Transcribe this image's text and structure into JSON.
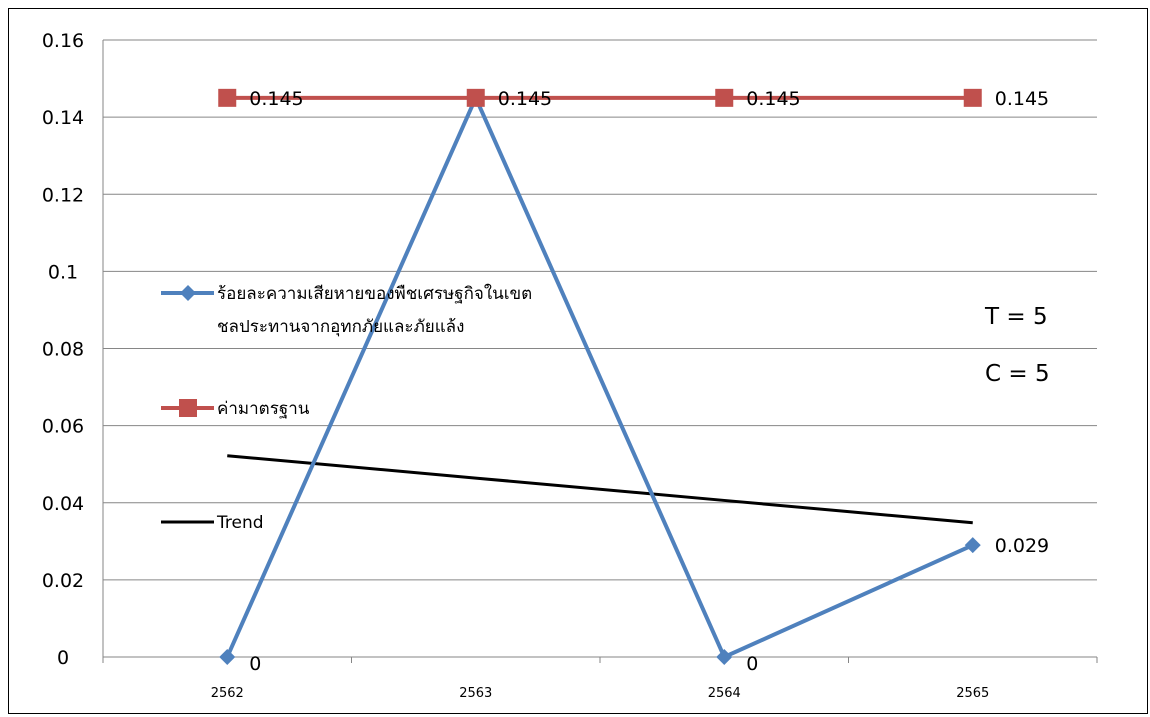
{
  "chart_data": {
    "type": "line",
    "categories": [
      "2562",
      "2563",
      "2564",
      "2565"
    ],
    "y_ticks": [
      "0",
      "0.02",
      "0.04",
      "0.06",
      "0.08",
      "0.1",
      "0.12",
      "0.14",
      "0.16"
    ],
    "ylim": [
      0,
      0.16
    ],
    "grid": true,
    "legend_position": "left, inside plot",
    "series": [
      {
        "name": "ร้อยละความเสียหายของพืชเศรษฐกิจในเขตชลประทานจากอุทกภัยและภัยแล้ง",
        "legend_lines": [
          "ร้อยละความเสียหายของพืชเศรษฐกิจในเขต",
          "ชลประทานจากอุทกภัยและภัยแล้ง"
        ],
        "values": [
          0,
          0.145,
          0,
          0.029
        ],
        "labels": [
          "0",
          "",
          "0",
          "0.029"
        ],
        "color": "#4F81BD",
        "marker": "diamond"
      },
      {
        "name": "ค่ามาตรฐาน",
        "legend_lines": [
          "ค่ามาตรฐาน"
        ],
        "values": [
          0.145,
          0.145,
          0.145,
          0.145
        ],
        "labels": [
          "0.145",
          "0.145",
          "0.145",
          "0.145"
        ],
        "color": "#C0504D",
        "marker": "square"
      },
      {
        "name": "Trend",
        "legend_lines": [
          "Trend"
        ],
        "values": [
          0.0522,
          0.0464,
          0.0406,
          0.0348
        ],
        "color": "#000000",
        "marker": "none"
      }
    ],
    "annotations": [
      "T = 5",
      "C = 5"
    ]
  }
}
